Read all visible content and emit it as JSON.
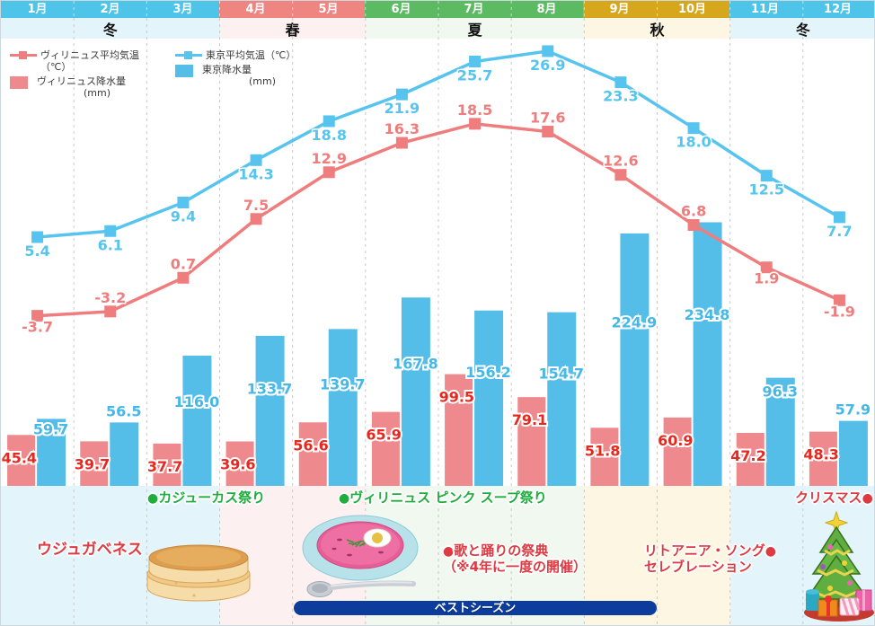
{
  "months": [
    "1月",
    "2月",
    "3月",
    "4月",
    "5月",
    "6月",
    "7月",
    "8月",
    "9月",
    "10月",
    "11月",
    "12月"
  ],
  "month_season": [
    "winter",
    "winter",
    "winter",
    "spring",
    "spring",
    "summer",
    "summer",
    "summer",
    "autumn",
    "autumn",
    "winter",
    "winter"
  ],
  "seasons": [
    {
      "label": "冬",
      "type": "winter",
      "span": 3
    },
    {
      "label": "春",
      "type": "spring",
      "span": 2
    },
    {
      "label": "夏",
      "type": "summer",
      "span": 3
    },
    {
      "label": "秋",
      "type": "autumn",
      "span": 2
    },
    {
      "label": "冬",
      "type": "winter",
      "span": 2
    }
  ],
  "season_colors": {
    "header": {
      "winter": "#4ec4e9",
      "spring": "#ee8581",
      "summer": "#5cba62",
      "autumn": "#d6a61c"
    },
    "band": {
      "winter": "#e4f4fb",
      "spring": "#fdf0f1",
      "summer": "#f0f8ef",
      "autumn": "#fdf6e2"
    }
  },
  "legend": {
    "items": [
      {
        "label": "ヴィリニュス平均気温（℃）",
        "type": "line",
        "color": "#f07d7d"
      },
      {
        "label": "東京平均気温（℃）",
        "type": "line",
        "color": "#56c4ef"
      },
      {
        "label": "ヴィリニュス降水量",
        "unit": "(mm)",
        "type": "bar",
        "color": "#ee8a8d"
      },
      {
        "label": "東京降水量",
        "unit": "(mm)",
        "type": "bar",
        "color": "#55bee8"
      }
    ]
  },
  "chart_data": {
    "type": "combo",
    "categories": [
      "1月",
      "2月",
      "3月",
      "4月",
      "5月",
      "6月",
      "7月",
      "8月",
      "9月",
      "10月",
      "11月",
      "12月"
    ],
    "series": [
      {
        "name": "ヴィリニュス平均気温（℃）",
        "chart": "line",
        "unit": "℃",
        "color": "#f07d7d",
        "label_color": "#f07d7d",
        "values": [
          -3.7,
          -3.2,
          0.7,
          7.5,
          12.9,
          16.3,
          18.5,
          17.6,
          12.6,
          6.8,
          1.9,
          -1.9
        ]
      },
      {
        "name": "東京平均気温（℃）",
        "chart": "line",
        "unit": "℃",
        "color": "#56c4ef",
        "label_color": "#56c4ef",
        "values": [
          5.4,
          6.1,
          9.4,
          14.3,
          18.8,
          21.9,
          25.7,
          26.9,
          23.3,
          18.0,
          12.5,
          7.7
        ]
      },
      {
        "name": "ヴィリニュス降水量",
        "chart": "bar",
        "unit": "mm",
        "color": "#ee8a8d",
        "label_color": "#e8281e",
        "values": [
          45.4,
          39.7,
          37.7,
          39.6,
          56.6,
          65.9,
          99.5,
          79.1,
          51.8,
          60.9,
          47.2,
          48.3
        ]
      },
      {
        "name": "東京降水量",
        "chart": "bar",
        "unit": "mm",
        "color": "#55bee8",
        "label_color": "#45b8e8",
        "values": [
          59.7,
          56.5,
          116.0,
          133.7,
          139.7,
          167.8,
          156.2,
          154.7,
          224.9,
          234.8,
          96.3,
          57.9
        ]
      }
    ],
    "grid": "vertical-dashed",
    "legend_position": "top-left"
  },
  "festivals": {
    "kaziukas": {
      "label": "カジューカス祭り",
      "color": "#1fad3e",
      "dot": "left"
    },
    "pink_soup": {
      "label": "ヴィリニュス ピンク スープ祭り",
      "color": "#1fad3e",
      "dot": "left"
    },
    "christmas": {
      "label": "クリスマス",
      "color": "#dd3a42",
      "dot": "right"
    },
    "uzgavenes": {
      "label": "ウジュガベネス",
      "color": "#dd3a42"
    },
    "song_dance": {
      "line1": "歌と踊りの祭典",
      "line2": "（※4年に一度の開催）",
      "color": "#dd3a42",
      "dot": "left"
    },
    "lithuania_song": {
      "line1": "リトアニア・ソング",
      "line2": "セレブレーション",
      "color": "#dd3a42",
      "dot": "right"
    }
  },
  "best_season": {
    "label": "ベストシーズン",
    "color": "#0c3c9c"
  },
  "illustrations": [
    "pancakes",
    "pink-soup-bowl",
    "spoon",
    "christmas-tree"
  ]
}
